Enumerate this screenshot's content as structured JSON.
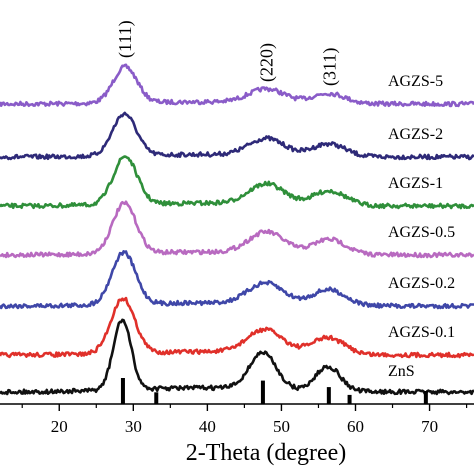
{
  "chart_data": {
    "type": "line",
    "title": "",
    "xlabel": "2-Theta (degree)",
    "ylabel": "",
    "xlim": [
      12,
      76
    ],
    "x_ticks": [
      20,
      30,
      40,
      50,
      60,
      70
    ],
    "grid": false,
    "peak_labels": [
      {
        "x": 28.9,
        "text": "(111)"
      },
      {
        "x": 48.0,
        "text": "(220)"
      },
      {
        "x": 56.5,
        "text": "(311)"
      }
    ],
    "reference": {
      "name": "",
      "positions": [
        28.6,
        33.1,
        47.5,
        56.4,
        59.2,
        69.5
      ],
      "relative_intensity": [
        1.0,
        0.45,
        0.9,
        0.65,
        0.35,
        0.5
      ]
    },
    "series": [
      {
        "name": "AGZS-5",
        "color": "#8a5cc8",
        "peaks": [
          {
            "center": 28.9,
            "height": 1.0
          },
          {
            "center": 48.0,
            "height": 0.38
          },
          {
            "center": 56.4,
            "height": 0.28
          }
        ]
      },
      {
        "name": "AGZS-2",
        "color": "#2e2a78",
        "peaks": [
          {
            "center": 28.8,
            "height": 1.0
          },
          {
            "center": 48.0,
            "height": 0.4
          },
          {
            "center": 56.4,
            "height": 0.3
          }
        ]
      },
      {
        "name": "AGZS-1",
        "color": "#2f8f3a",
        "peaks": [
          {
            "center": 28.9,
            "height": 1.0
          },
          {
            "center": 48.0,
            "height": 0.42
          },
          {
            "center": 56.5,
            "height": 0.3
          }
        ]
      },
      {
        "name": "AGZS-0.5",
        "color": "#b86ac0",
        "peaks": [
          {
            "center": 28.8,
            "height": 1.0
          },
          {
            "center": 48.0,
            "height": 0.42
          },
          {
            "center": 56.5,
            "height": 0.3
          }
        ]
      },
      {
        "name": "AGZS-0.2",
        "color": "#3f47a8",
        "peaks": [
          {
            "center": 28.7,
            "height": 1.0
          },
          {
            "center": 47.9,
            "height": 0.4
          },
          {
            "center": 56.4,
            "height": 0.3
          }
        ]
      },
      {
        "name": "AGZS-0.1",
        "color": "#e0302a",
        "peaks": [
          {
            "center": 28.6,
            "height": 1.0
          },
          {
            "center": 47.8,
            "height": 0.42
          },
          {
            "center": 56.3,
            "height": 0.3
          }
        ]
      },
      {
        "name": "ZnS",
        "color": "#111111",
        "peaks": [
          {
            "center": 28.5,
            "height": 1.0
          },
          {
            "center": 47.5,
            "height": 0.52
          },
          {
            "center": 56.3,
            "height": 0.35
          }
        ]
      }
    ]
  }
}
